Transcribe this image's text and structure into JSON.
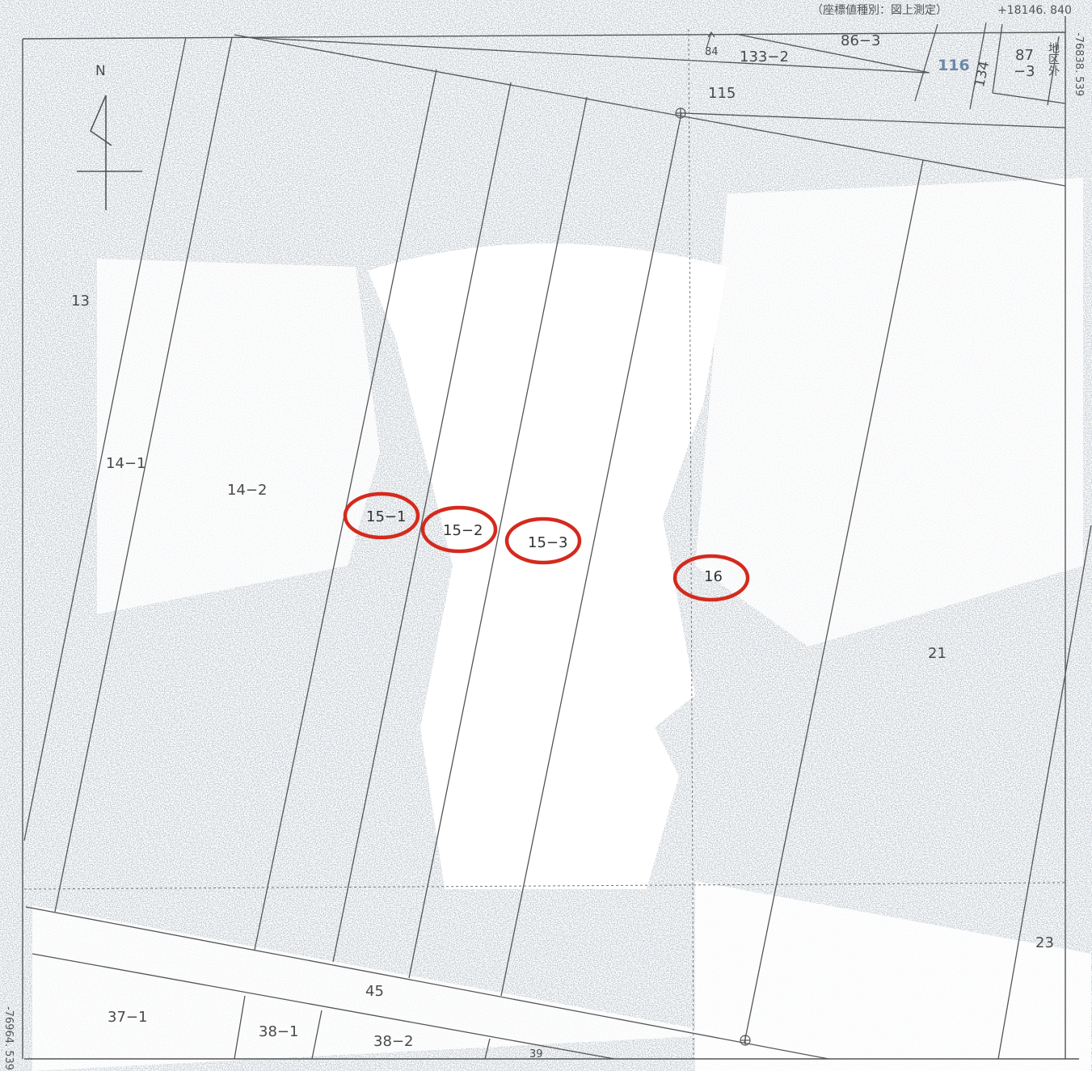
{
  "header": {
    "coord_type": "（座標値種別：図上測定）",
    "coord_top_right": "+18146. 840",
    "coord_right_side": "-76838. 539",
    "coord_left_side": "-76964. 539"
  },
  "compass": {
    "label": "N"
  },
  "parcels": {
    "p13": "13",
    "p14_1": "14−1",
    "p14_2": "14−2",
    "p15_1": "15−1",
    "p15_2": "15−2",
    "p15_3": "15−3",
    "p16": "16",
    "p21": "21",
    "p23": "23",
    "p45": "45",
    "p37_1": "37−1",
    "p38_1": "38−1",
    "p38_2": "38−2",
    "p39": "39",
    "p84": "84",
    "p133_2": "133−2",
    "p86_3": "86−3",
    "p115": "115",
    "p116": "116",
    "p134": "134",
    "p87_3_a": "87",
    "p87_3_b": "−3",
    "outside": "地区外"
  },
  "highlighted_parcels": [
    "15−1",
    "15−2",
    "15−3",
    "16"
  ],
  "colors": {
    "highlight_circle": "#d42a1e",
    "line": "#555555",
    "stipple": "#9aa3ab",
    "label": "#4a4a4a",
    "parcel_116": "#6d88a8"
  }
}
